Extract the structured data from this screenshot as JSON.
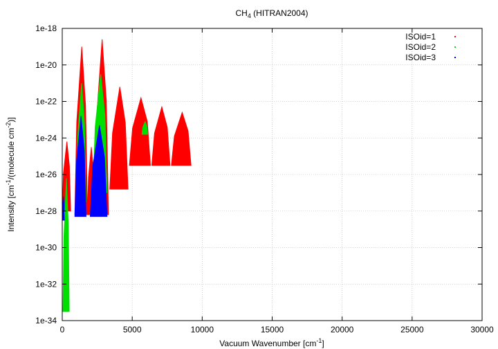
{
  "chart_data": {
    "type": "scatter",
    "title_main": "CH",
    "title_sub": "4",
    "title_rest": " (HITRAN2004)",
    "xlabel_main": "Vacuum Wavenumber [cm",
    "xlabel_sup": "-1",
    "xlabel_end": "]",
    "ylabel_a": "Intensity [cm",
    "ylabel_sup1": "-1",
    "ylabel_b": "/(molecule cm",
    "ylabel_sup2": "-2",
    "ylabel_c": ")]",
    "xlim": [
      0,
      30000
    ],
    "ylim_log10": [
      -34,
      -18
    ],
    "yscale": "log",
    "grid": true,
    "legend_position": "top-right",
    "x_ticks": [
      {
        "value": 0,
        "label": "0"
      },
      {
        "value": 5000,
        "label": "5000"
      },
      {
        "value": 10000,
        "label": "10000"
      },
      {
        "value": 15000,
        "label": "15000"
      },
      {
        "value": 20000,
        "label": "20000"
      },
      {
        "value": 25000,
        "label": "25000"
      },
      {
        "value": 30000,
        "label": "30000"
      }
    ],
    "y_ticks": [
      {
        "exp": -18,
        "label": "1e-18"
      },
      {
        "exp": -20,
        "label": "1e-20"
      },
      {
        "exp": -22,
        "label": "1e-22"
      },
      {
        "exp": -24,
        "label": "1e-24"
      },
      {
        "exp": -26,
        "label": "1e-26"
      },
      {
        "exp": -28,
        "label": "1e-28"
      },
      {
        "exp": -30,
        "label": "1e-30"
      },
      {
        "exp": -32,
        "label": "1e-32"
      },
      {
        "exp": -34,
        "label": "1e-34"
      }
    ],
    "series": [
      {
        "name": "ISOid=1",
        "color": "#ff0000",
        "bands": [
          {
            "xmin": 0,
            "xmax": 600,
            "ymin_exp": -28,
            "ymax_exp": -24.2
          },
          {
            "xmin": 900,
            "xmax": 1800,
            "ymin_exp": -28.2,
            "ymax_exp": -19.0
          },
          {
            "xmin": 1800,
            "xmax": 2300,
            "ymin_exp": -28.2,
            "ymax_exp": -24.5
          },
          {
            "xmin": 2300,
            "xmax": 3300,
            "ymin_exp": -28.2,
            "ymax_exp": -18.6
          },
          {
            "xmin": 3400,
            "xmax": 4700,
            "ymin_exp": -26.8,
            "ymax_exp": -21.2
          },
          {
            "xmin": 4800,
            "xmax": 6300,
            "ymin_exp": -25.5,
            "ymax_exp": -21.8
          },
          {
            "xmin": 6400,
            "xmax": 7700,
            "ymin_exp": -25.5,
            "ymax_exp": -22.3
          },
          {
            "xmin": 7800,
            "xmax": 9200,
            "ymin_exp": -25.5,
            "ymax_exp": -22.6
          }
        ]
      },
      {
        "name": "ISOid=2",
        "color": "#00e000",
        "bands": [
          {
            "xmin": 50,
            "xmax": 500,
            "ymin_exp": -33.5,
            "ymax_exp": -26.2
          },
          {
            "xmin": 1000,
            "xmax": 1700,
            "ymin_exp": -27.5,
            "ymax_exp": -21.0
          },
          {
            "xmin": 2200,
            "xmax": 3200,
            "ymin_exp": -27.0,
            "ymax_exp": -20.5
          },
          {
            "xmin": 5700,
            "xmax": 6100,
            "ymin_exp": -23.8,
            "ymax_exp": -23.1
          }
        ]
      },
      {
        "name": "ISOid=3",
        "color": "#0000ff",
        "bands": [
          {
            "xmin": 0,
            "xmax": 150,
            "ymin_exp": -28.5,
            "ymax_exp": -27.2
          },
          {
            "xmin": 900,
            "xmax": 1700,
            "ymin_exp": -28.3,
            "ymax_exp": -22.8
          },
          {
            "xmin": 2000,
            "xmax": 3200,
            "ymin_exp": -28.3,
            "ymax_exp": -23.3
          }
        ]
      }
    ]
  }
}
